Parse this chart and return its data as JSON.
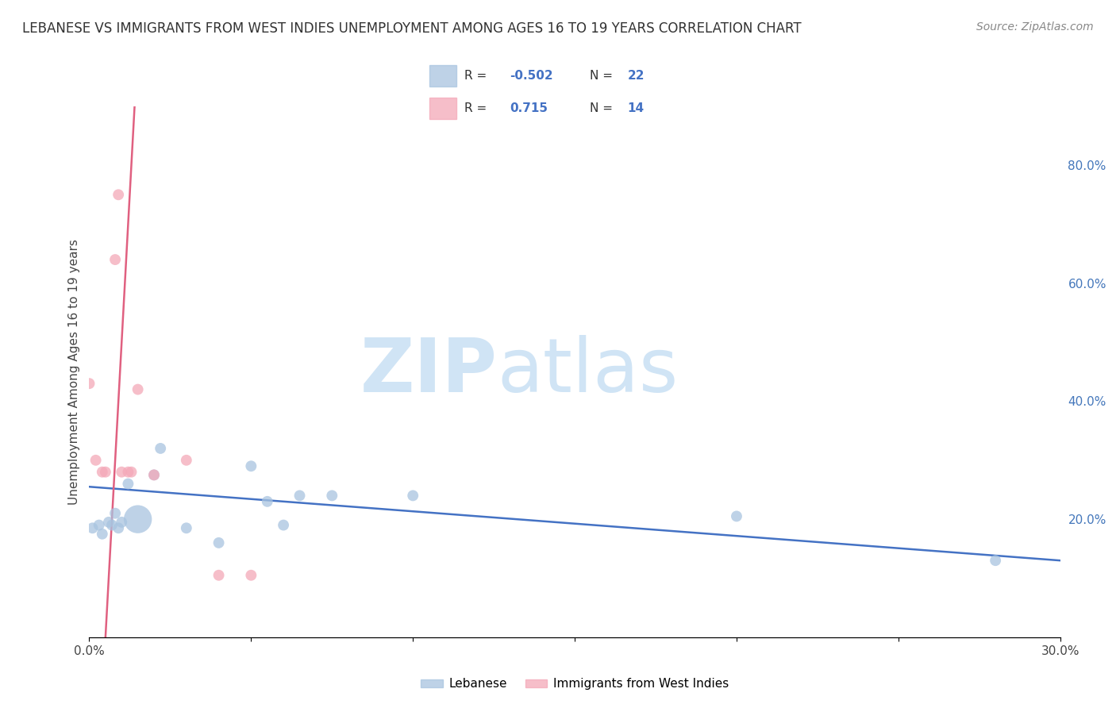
{
  "title": "LEBANESE VS IMMIGRANTS FROM WEST INDIES UNEMPLOYMENT AMONG AGES 16 TO 19 YEARS CORRELATION CHART",
  "source": "Source: ZipAtlas.com",
  "ylabel": "Unemployment Among Ages 16 to 19 years",
  "xlim": [
    0.0,
    0.3
  ],
  "ylim": [
    0.0,
    0.9
  ],
  "xticks": [
    0.0,
    0.05,
    0.1,
    0.15,
    0.2,
    0.25,
    0.3
  ],
  "xtick_labels": [
    "0.0%",
    "",
    "",
    "",
    "",
    "",
    "30.0%"
  ],
  "yticks_right": [
    0.2,
    0.4,
    0.6,
    0.8
  ],
  "ytick_labels_right": [
    "20.0%",
    "40.0%",
    "60.0%",
    "80.0%"
  ],
  "blue_R": -0.502,
  "blue_N": 22,
  "pink_R": 0.715,
  "pink_N": 14,
  "blue_color": "#A8C4E0",
  "pink_color": "#F4A8B8",
  "blue_line_color": "#4472C4",
  "pink_line_color": "#E06080",
  "watermark_zip": "ZIP",
  "watermark_atlas": "atlas",
  "watermark_color": "#D0E4F5",
  "legend_label_blue": "Lebanese",
  "legend_label_pink": "Immigrants from West Indies",
  "grid_color": "#CCCCCC",
  "background_color": "#FFFFFF",
  "blue_points_x": [
    0.001,
    0.003,
    0.004,
    0.006,
    0.007,
    0.008,
    0.009,
    0.01,
    0.012,
    0.015,
    0.02,
    0.022,
    0.03,
    0.04,
    0.05,
    0.055,
    0.06,
    0.065,
    0.075,
    0.1,
    0.2,
    0.28
  ],
  "blue_points_y": [
    0.185,
    0.19,
    0.175,
    0.195,
    0.19,
    0.21,
    0.185,
    0.195,
    0.26,
    0.2,
    0.275,
    0.32,
    0.185,
    0.16,
    0.29,
    0.23,
    0.19,
    0.24,
    0.24,
    0.24,
    0.205,
    0.13
  ],
  "blue_sizes": [
    100,
    100,
    100,
    100,
    100,
    100,
    100,
    100,
    100,
    650,
    100,
    100,
    100,
    100,
    100,
    100,
    100,
    100,
    100,
    100,
    100,
    100
  ],
  "pink_points_x": [
    0.0,
    0.002,
    0.004,
    0.005,
    0.008,
    0.009,
    0.01,
    0.012,
    0.013,
    0.015,
    0.02,
    0.03,
    0.04,
    0.05
  ],
  "pink_points_y": [
    0.43,
    0.3,
    0.28,
    0.28,
    0.64,
    0.75,
    0.28,
    0.28,
    0.28,
    0.42,
    0.275,
    0.3,
    0.105,
    0.105
  ],
  "pink_sizes": [
    100,
    100,
    100,
    100,
    100,
    100,
    100,
    100,
    100,
    100,
    100,
    100,
    100,
    100
  ],
  "blue_trend_x0": 0.0,
  "blue_trend_y0": 0.255,
  "blue_trend_x1": 0.3,
  "blue_trend_y1": 0.13,
  "pink_trend_x0": 0.005,
  "pink_trend_y0": 0.0,
  "pink_trend_x1": 0.014,
  "pink_trend_y1": 0.9
}
